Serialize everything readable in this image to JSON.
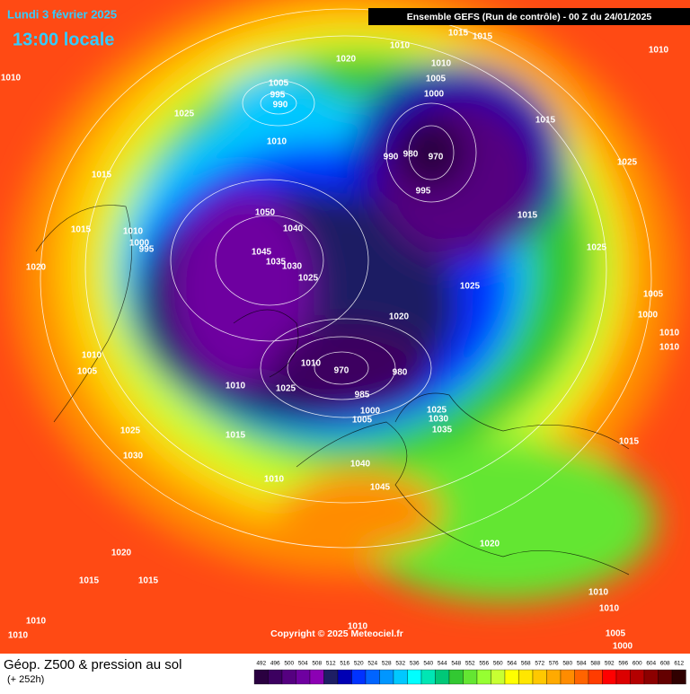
{
  "header": {
    "date": "Lundi 3 février 2025",
    "time": "13:00 locale",
    "run": "Ensemble GEFS  (Run de contrôle)  -  00 Z du 24/01/2025"
  },
  "map": {
    "copyright": "Copyright © 2025 Meteociel.fr",
    "isobar_labels": [
      "1015",
      "1015",
      "1010",
      "1020",
      "1010",
      "1005",
      "1000",
      "1010",
      "1010",
      "1025",
      "1005",
      "995",
      "990",
      "1015",
      "1010",
      "1015",
      "1025",
      "990",
      "980",
      "970",
      "995",
      "1015",
      "1050",
      "1040",
      "1015",
      "1010",
      "1000",
      "995",
      "1045",
      "1030",
      "1035",
      "1025",
      "1025",
      "1025",
      "1020",
      "1005",
      "1000",
      "1020",
      "1010",
      "1010",
      "1010",
      "1005",
      "1010",
      "970",
      "980",
      "1010",
      "1025",
      "985",
      "1000",
      "1005",
      "1025",
      "1030",
      "1035",
      "1015",
      "1015",
      "1025",
      "1030",
      "1040",
      "1045",
      "1010",
      "1020",
      "1020",
      "1015",
      "1015",
      "1010",
      "1010",
      "1010",
      "1010",
      "1010",
      "1005",
      "1000"
    ]
  },
  "footer": {
    "title": "Géop. Z500 & pression au sol",
    "lead": "(+ 252h)",
    "scale": {
      "ticks": [
        492,
        496,
        500,
        504,
        508,
        512,
        516,
        520,
        524,
        528,
        532,
        536,
        540,
        544,
        548,
        552,
        556,
        560,
        564,
        568,
        572,
        576,
        580,
        584,
        588,
        592,
        596,
        600,
        604,
        608,
        612
      ],
      "colors": [
        "#2a0040",
        "#3c0060",
        "#550080",
        "#6e00a0",
        "#8c00b4",
        "#1e1e64",
        "#0000b4",
        "#0032ff",
        "#0064ff",
        "#0096ff",
        "#00c8ff",
        "#00ffff",
        "#00e6b4",
        "#00c878",
        "#32c832",
        "#64e632",
        "#96ff32",
        "#c8ff32",
        "#ffff00",
        "#ffe600",
        "#ffc800",
        "#ffaa00",
        "#ff8c00",
        "#ff6400",
        "#ff3c00",
        "#ff0000",
        "#dc0000",
        "#b40000",
        "#8c0000",
        "#640000",
        "#300000"
      ]
    }
  }
}
